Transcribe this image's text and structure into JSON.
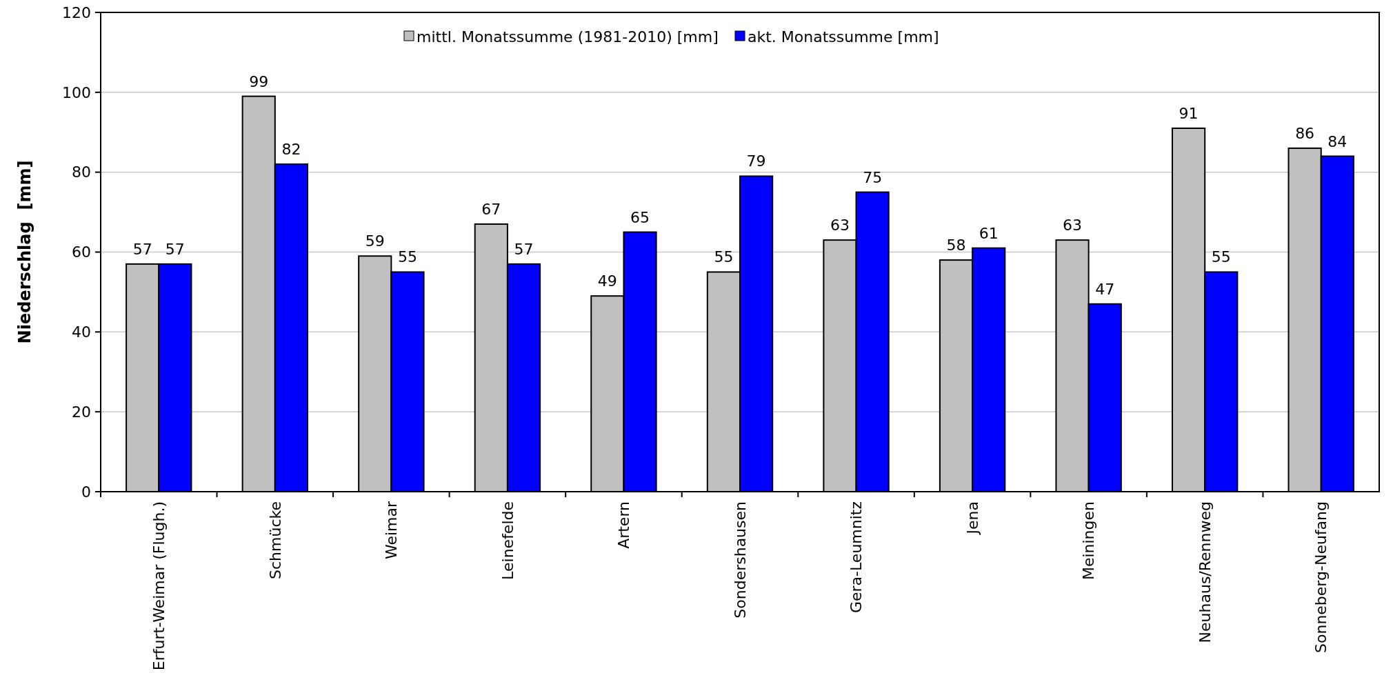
{
  "chart_data": {
    "type": "bar",
    "ylabel": "Niederschlag  [mm]",
    "categories": [
      "Erfurt-Weimar (Flugh.)",
      "Schmücke",
      "Weimar",
      "Leinefelde",
      "Artern",
      "Sondershausen",
      "Gera-Leumnitz",
      "Jena",
      "Meiningen",
      "Neuhaus/Rennweg",
      "Sonneberg-Neufang"
    ],
    "series": [
      {
        "name": "mittl. Monatssumme (1981-2010) [mm]",
        "color": "#c0c0c0",
        "values": [
          57,
          99,
          59,
          67,
          49,
          55,
          63,
          58,
          63,
          91,
          86
        ]
      },
      {
        "name": "akt. Monatssumme [mm]",
        "color": "#0000ff",
        "values": [
          57,
          82,
          55,
          57,
          65,
          79,
          75,
          61,
          47,
          55,
          84
        ]
      }
    ],
    "ylim": [
      0,
      120
    ],
    "yticks": [
      0,
      20,
      40,
      60,
      80,
      100,
      120
    ],
    "grid": "y",
    "legend": "top",
    "data_labels": true
  }
}
